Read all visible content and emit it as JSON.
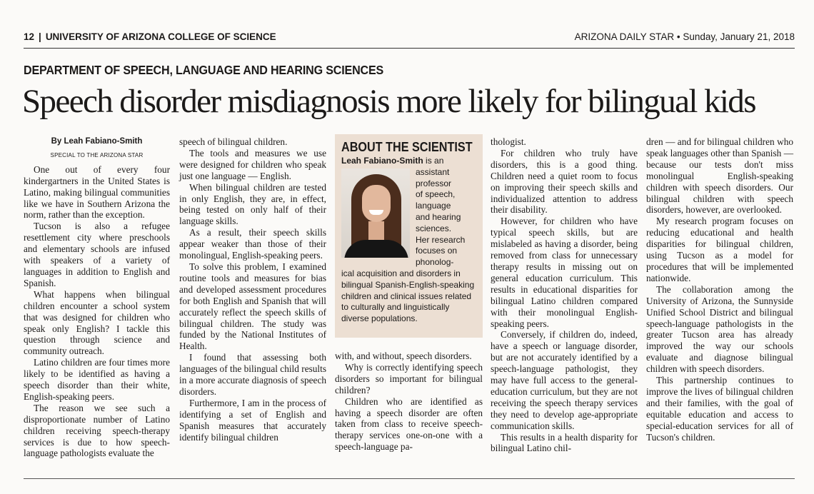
{
  "folio": {
    "page_number": "12",
    "section": "UNIVERSITY OF ARIZONA COLLEGE OF SCIENCE",
    "publication_date": "ARIZONA DAILY STAR • Sunday, January 21, 2018"
  },
  "kicker": "DEPARTMENT OF SPEECH, LANGUAGE AND HEARING SCIENCES",
  "headline": "Speech disorder misdiagnosis more likely for bilingual kids",
  "byline": "By Leah Fabiano-Smith",
  "byline_credit": "SPECIAL TO THE ARIZONA STAR",
  "sidebar": {
    "title": "ABOUT THE SCIENTIST",
    "name": "Leah Fabiano-Smith",
    "text_lines": [
      " is an",
      "assistant",
      "professor",
      "of speech,",
      "language",
      "and hearing",
      "sciences.",
      "Her research",
      "focuses on",
      "phonolog-",
      "ical acquisition and disorders in bilingual Spanish-English-speaking children and clinical issues related to culturally and linguistically diverse populations."
    ]
  },
  "columns": {
    "c1": [
      "One out of every four kindergartners in the United States is Latino, making bilingual communities like we have in Southern Arizona the norm, rather than the exception.",
      "Tucson is also a refugee resettlement city where preschools and elementary schools are infused with speakers of a variety of languages in addition to English and Spanish.",
      "What happens when bilingual children encounter a school system that was designed for children who speak only English? I tackle this question through science and community outreach.",
      "Latino children are four times more likely to be identified as having a speech disorder than their white, English-speaking peers.",
      "The reason we see such a disproportionate number of Latino children receiving speech-therapy services is due to how speech-language pathologists evaluate the"
    ],
    "c2": [
      "speech of bilingual children.",
      "The tools and measures we use were designed for children who speak just one language — English.",
      "When bilingual children are tested in only English, they are, in effect, being tested on only half of their language skills.",
      "As a result, their speech skills appear weaker than those of their monolingual, English-speaking peers.",
      "To solve this problem, I examined routine tools and measures for bias and developed assessment procedures for both English and Spanish that will accurately reflect the speech skills of bilingual children. The study was funded by the National Institutes of Health.",
      "I found that assessing both languages of the bilingual child results in a more accurate diagnosis of speech disorders.",
      "Furthermore, I am in the process of identifying a set of English and Spanish measures that accurately identify bilingual children"
    ],
    "c3": [
      "with, and without, speech disorders.",
      "Why is correctly identifying speech disorders so important for bilingual children?",
      "Children who are identified as having a speech disorder are often taken from class to receive speech-therapy services one-on-one with a speech-language pa-"
    ],
    "c4": [
      "thologist.",
      "For children who truly have disorders, this is a good thing. Children need a quiet room to focus on improving their speech skills and individualized attention to address their disability.",
      "However, for children who have typical speech skills, but are mislabeled as having a disorder, being removed from class for unnecessary therapy results in missing out on general education curriculum. This results in educational disparities for bilingual Latino children compared with their monolingual English-speaking peers.",
      "Conversely, if children do, indeed, have a speech or language disorder, but are not accurately identified by a speech-language pathologist, they may have full access to the general-education curriculum, but they are not receiving the speech therapy services they need to develop age-appropriate communication skills.",
      "This results in a health disparity for bilingual Latino chil-"
    ],
    "c5": [
      "dren — and for bilingual children who speak languages other than Spanish — because our tests don't miss monolingual English-speaking children with speech disorders. Our bilingual children with speech disorders, however, are overlooked.",
      "My research program focuses on reducing educational and health disparities for bilingual children, using Tucson as a model for procedures that will be implemented nationwide.",
      "The collaboration among the University of Arizona, the Sunnyside Unified School District and bilingual speech-language pathologists in the greater Tucson area has already improved the way our schools evaluate and diagnose bilingual children with speech disorders.",
      "This partnership continues to improve the lives of bilingual children and their families, with the goal of equitable education and access to special-education services for all of Tucson's children."
    ]
  }
}
